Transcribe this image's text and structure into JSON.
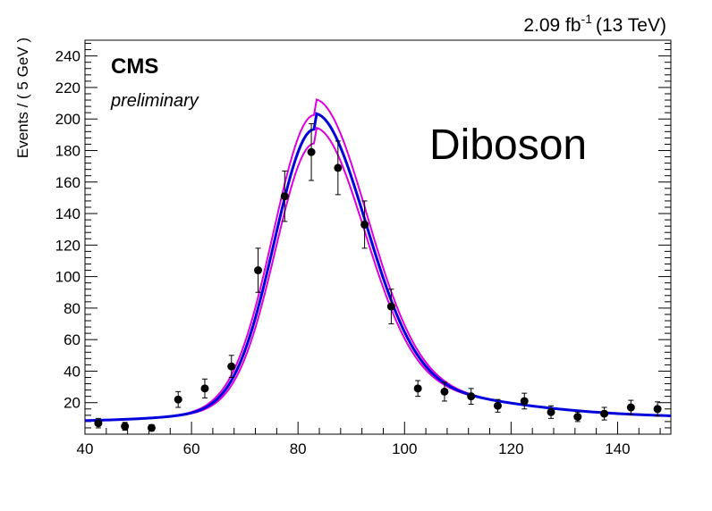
{
  "chart_data": {
    "type": "scatter",
    "title": "",
    "xlabel": "",
    "ylabel": "Events / ( 5 GeV )",
    "xlim": [
      40,
      150
    ],
    "ylim": [
      0,
      250
    ],
    "x_ticks": [
      40,
      60,
      80,
      100,
      120,
      140
    ],
    "y_ticks": [
      20,
      40,
      60,
      80,
      100,
      120,
      140,
      160,
      180,
      200,
      220,
      240
    ],
    "luminosity": {
      "value": "2.09 fb",
      "exponent": "-1",
      "energy": "(13 TeV)"
    },
    "experiment": "CMS",
    "status": "preliminary",
    "process_label": "Diboson",
    "grid": false,
    "series": [
      {
        "type": "points_with_errors",
        "color": "#000000",
        "x": [
          42.5,
          47.5,
          52.5,
          57.5,
          62.5,
          67.5,
          72.5,
          77.5,
          82.5,
          87.5,
          92.5,
          97.5,
          102.5,
          107.5,
          112.5,
          117.5,
          122.5,
          127.5,
          132.5,
          137.5,
          142.5,
          147.5
        ],
        "y": [
          7,
          5,
          4,
          22,
          29,
          43,
          104,
          151,
          179,
          169,
          133,
          81,
          29,
          27,
          24,
          18,
          21,
          14,
          11,
          13,
          17,
          16
        ],
        "yerr": [
          3,
          2.5,
          2,
          5,
          6,
          7,
          14,
          16,
          18,
          17,
          15,
          11,
          5,
          6,
          5,
          4,
          5,
          4,
          3,
          4,
          4.5,
          4.5
        ]
      },
      {
        "type": "fit",
        "color": "#0000dd",
        "model": {
          "peak": 83,
          "amplitude": 173,
          "sigma_left": 7.4,
          "sigma_right": 9.6,
          "bkg_level": 8,
          "bkg_slope": -0.18,
          "bkg_peak_offset": 10
        }
      },
      {
        "type": "fit-upper-band",
        "color": "#dd00dd",
        "model": {
          "peak": 83,
          "amplitude": 182,
          "sigma_left": 7.6,
          "sigma_right": 9.8,
          "bkg_level": 8,
          "bkg_slope": -0.18,
          "bkg_peak_offset": 10
        }
      },
      {
        "type": "fit-lower-band",
        "color": "#dd00dd",
        "model": {
          "peak": 83,
          "amplitude": 164,
          "sigma_left": 7.2,
          "sigma_right": 9.4,
          "bkg_level": 8,
          "bkg_slope": -0.18,
          "bkg_peak_offset": 10
        }
      }
    ]
  }
}
